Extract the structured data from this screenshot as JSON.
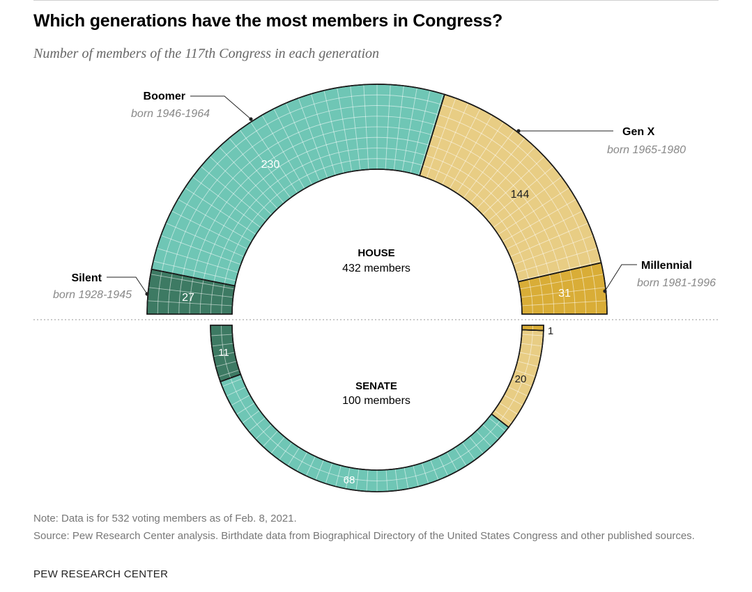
{
  "title": "Which generations have the most members in Congress?",
  "subtitle": "Number of members of the 117th Congress in each generation",
  "chart_data": {
    "type": "parliament-semicircle",
    "title": "Which generations have the most members in Congress?",
    "subtitle": "Number of members of the 117th Congress in each generation",
    "generations": [
      {
        "name": "Silent",
        "born": "born 1928-1945",
        "color": "#3d7a63"
      },
      {
        "name": "Boomer",
        "born": "born 1946-1964",
        "color": "#6fc6b5"
      },
      {
        "name": "Gen X",
        "born": "born 1965-1980",
        "color": "#e8cd84"
      },
      {
        "name": "Millennial",
        "born": "born 1981-1996",
        "color": "#d9ad37"
      }
    ],
    "chambers": [
      {
        "name": "HOUSE",
        "total_label": "432 members",
        "total": 432,
        "values": [
          27,
          230,
          144,
          31
        ],
        "value_labels": [
          "27",
          "230",
          "144",
          "31"
        ]
      },
      {
        "name": "SENATE",
        "total_label": "100 members",
        "total": 100,
        "values": [
          11,
          68,
          20,
          1
        ],
        "value_labels": [
          "11",
          "68",
          "20",
          "1"
        ]
      }
    ]
  },
  "footer": {
    "note": "Note: Data is for 532 voting members as of Feb. 8, 2021.",
    "source": "Source: Pew Research Center analysis. Birthdate data from Biographical Directory of the United States Congress and other published sources.",
    "brand": "PEW RESEARCH CENTER"
  }
}
